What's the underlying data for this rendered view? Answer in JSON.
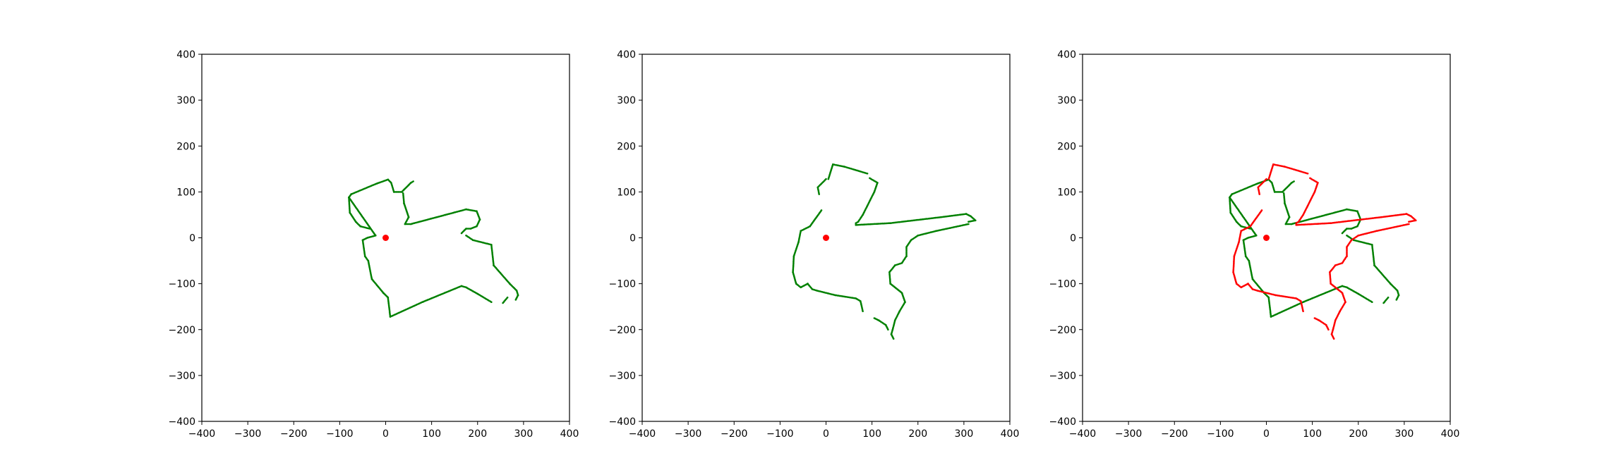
{
  "colors": {
    "scan_a": "#008000",
    "scan_b": "#ff0000",
    "origin": "#ff0000"
  },
  "chart_data": [
    {
      "type": "scatter",
      "xlim": [
        -400,
        400
      ],
      "ylim": [
        -400,
        400
      ],
      "xticks": [
        "−400",
        "−300",
        "−200",
        "−100",
        "0",
        "100",
        "200",
        "300",
        "400"
      ],
      "yticks": [
        "400",
        "300",
        "200",
        "100",
        "0",
        "−100",
        "−200",
        "−300",
        "−400"
      ],
      "grid": false,
      "origin": [
        0,
        0
      ],
      "series": [
        {
          "color": "#008000",
          "segments": [
            [
              [
                -22,
                5
              ],
              [
                -80,
                88
              ],
              [
                -75,
                95
              ],
              [
                -20,
                118
              ],
              [
                5,
                127
              ],
              [
                12,
                120
              ],
              [
                18,
                100
              ],
              [
                35,
                100
              ],
              [
                55,
                120
              ],
              [
                60,
                123
              ]
            ],
            [
              [
                -80,
                88
              ],
              [
                -78,
                55
              ],
              [
                -65,
                35
              ],
              [
                -55,
                25
              ],
              [
                -35,
                20
              ]
            ],
            [
              [
                -22,
                5
              ],
              [
                -40,
                0
              ],
              [
                -50,
                -5
              ],
              [
                -45,
                -40
              ],
              [
                -38,
                -50
              ],
              [
                -30,
                -90
              ],
              [
                -5,
                -120
              ],
              [
                5,
                -130
              ],
              [
                10,
                -172
              ],
              [
                80,
                -140
              ],
              [
                165,
                -105
              ],
              [
                175,
                -108
              ],
              [
                200,
                -122
              ],
              [
                230,
                -140
              ]
            ],
            [
              [
                38,
                97
              ],
              [
                40,
                75
              ],
              [
                50,
                45
              ],
              [
                42,
                30
              ],
              [
                55,
                30
              ]
            ],
            [
              [
                55,
                30
              ],
              [
                130,
                50
              ],
              [
                175,
                62
              ],
              [
                198,
                58
              ],
              [
                205,
                40
              ],
              [
                198,
                25
              ],
              [
                185,
                20
              ],
              [
                175,
                20
              ],
              [
                165,
                10
              ]
            ],
            [
              [
                175,
                5
              ],
              [
                190,
                -5
              ],
              [
                230,
                -15
              ],
              [
                235,
                -60
              ],
              [
                270,
                -100
              ],
              [
                285,
                -115
              ],
              [
                288,
                -125
              ],
              [
                283,
                -135
              ]
            ],
            [
              [
                265,
                -130
              ],
              [
                255,
                -142
              ]
            ]
          ]
        },
        {
          "color": "#008000",
          "segments": [
            [
              [
                5,
                128
              ],
              [
                15,
                160
              ],
              [
                40,
                155
              ],
              [
                90,
                140
              ]
            ],
            [
              [
                95,
                130
              ],
              [
                112,
                120
              ],
              [
                105,
                100
              ],
              [
                80,
                50
              ],
              [
                70,
                35
              ],
              [
                65,
                32
              ],
              [
                65,
                28
              ],
              [
                140,
                32
              ]
            ],
            [
              [
                140,
                32
              ],
              [
                250,
                45
              ],
              [
                305,
                52
              ],
              [
                315,
                47
              ],
              [
                325,
                38
              ],
              [
                310,
                35
              ]
            ],
            [
              [
                310,
                30
              ],
              [
                240,
                15
              ],
              [
                200,
                5
              ],
              [
                185,
                -5
              ],
              [
                175,
                -20
              ],
              [
                175,
                -40
              ],
              [
                165,
                -55
              ],
              [
                150,
                -60
              ],
              [
                138,
                -75
              ],
              [
                140,
                -100
              ],
              [
                165,
                -120
              ],
              [
                172,
                -140
              ],
              [
                160,
                -160
              ],
              [
                150,
                -180
              ],
              [
                145,
                -200
              ],
              [
                142,
                -210
              ],
              [
                147,
                -220
              ]
            ],
            [
              [
                -10,
                60
              ],
              [
                -35,
                25
              ],
              [
                -55,
                15
              ],
              [
                -60,
                -10
              ],
              [
                -70,
                -40
              ],
              [
                -72,
                -75
              ],
              [
                -65,
                -100
              ],
              [
                -55,
                -108
              ],
              [
                -40,
                -100
              ],
              [
                -30,
                -112
              ],
              [
                -20,
                -115
              ],
              [
                20,
                -125
              ],
              [
                65,
                -132
              ],
              [
                75,
                -138
              ],
              [
                80,
                -160
              ]
            ],
            [
              [
                -15,
                95
              ],
              [
                -18,
                110
              ],
              [
                0,
                128
              ]
            ],
            [
              [
                105,
                -175
              ],
              [
                115,
                -180
              ],
              [
                130,
                -190
              ],
              [
                135,
                -200
              ]
            ]
          ]
        },
        {
          "color": "#008000",
          "segments": [
            [
              [
                -22,
                5
              ],
              [
                -80,
                88
              ],
              [
                -75,
                95
              ],
              [
                -20,
                118
              ],
              [
                5,
                127
              ],
              [
                12,
                120
              ],
              [
                18,
                100
              ],
              [
                35,
                100
              ],
              [
                55,
                120
              ],
              [
                60,
                123
              ]
            ],
            [
              [
                -80,
                88
              ],
              [
                -78,
                55
              ],
              [
                -65,
                35
              ],
              [
                -55,
                25
              ],
              [
                -35,
                20
              ]
            ],
            [
              [
                -22,
                5
              ],
              [
                -40,
                0
              ],
              [
                -50,
                -5
              ],
              [
                -45,
                -40
              ],
              [
                -38,
                -50
              ],
              [
                -30,
                -90
              ],
              [
                -5,
                -120
              ],
              [
                5,
                -130
              ],
              [
                10,
                -172
              ],
              [
                80,
                -140
              ],
              [
                165,
                -105
              ],
              [
                175,
                -108
              ],
              [
                200,
                -122
              ],
              [
                230,
                -140
              ]
            ],
            [
              [
                38,
                97
              ],
              [
                40,
                75
              ],
              [
                50,
                45
              ],
              [
                42,
                30
              ],
              [
                55,
                30
              ]
            ],
            [
              [
                55,
                30
              ],
              [
                130,
                50
              ],
              [
                175,
                62
              ],
              [
                198,
                58
              ],
              [
                205,
                40
              ],
              [
                198,
                25
              ],
              [
                185,
                20
              ],
              [
                175,
                20
              ],
              [
                165,
                10
              ]
            ],
            [
              [
                175,
                5
              ],
              [
                190,
                -5
              ],
              [
                230,
                -15
              ],
              [
                235,
                -60
              ],
              [
                270,
                -100
              ],
              [
                285,
                -115
              ],
              [
                288,
                -125
              ],
              [
                283,
                -135
              ]
            ],
            [
              [
                265,
                -130
              ],
              [
                255,
                -142
              ]
            ]
          ]
        },
        {
          "color": "#ff0000",
          "segments": [
            [
              [
                5,
                128
              ],
              [
                15,
                160
              ],
              [
                40,
                155
              ],
              [
                90,
                140
              ]
            ],
            [
              [
                95,
                130
              ],
              [
                112,
                120
              ],
              [
                105,
                100
              ],
              [
                80,
                50
              ],
              [
                70,
                35
              ],
              [
                65,
                32
              ],
              [
                65,
                28
              ],
              [
                140,
                32
              ]
            ],
            [
              [
                140,
                32
              ],
              [
                250,
                45
              ],
              [
                305,
                52
              ],
              [
                315,
                47
              ],
              [
                325,
                38
              ],
              [
                310,
                35
              ]
            ],
            [
              [
                310,
                30
              ],
              [
                240,
                15
              ],
              [
                200,
                5
              ],
              [
                185,
                -5
              ],
              [
                175,
                -20
              ],
              [
                175,
                -40
              ],
              [
                165,
                -55
              ],
              [
                150,
                -60
              ],
              [
                138,
                -75
              ],
              [
                140,
                -100
              ],
              [
                165,
                -120
              ],
              [
                172,
                -140
              ],
              [
                160,
                -160
              ],
              [
                150,
                -180
              ],
              [
                145,
                -200
              ],
              [
                142,
                -210
              ],
              [
                147,
                -220
              ]
            ],
            [
              [
                -10,
                60
              ],
              [
                -35,
                25
              ],
              [
                -55,
                15
              ],
              [
                -60,
                -10
              ],
              [
                -70,
                -40
              ],
              [
                -72,
                -75
              ],
              [
                -65,
                -100
              ],
              [
                -55,
                -108
              ],
              [
                -40,
                -100
              ],
              [
                -30,
                -112
              ],
              [
                -20,
                -115
              ],
              [
                20,
                -125
              ],
              [
                65,
                -132
              ],
              [
                75,
                -138
              ],
              [
                80,
                -160
              ]
            ],
            [
              [
                -15,
                95
              ],
              [
                -18,
                110
              ],
              [
                0,
                128
              ]
            ],
            [
              [
                105,
                -175
              ],
              [
                115,
                -180
              ],
              [
                130,
                -190
              ],
              [
                135,
                -200
              ]
            ]
          ]
        }
      ]
    }
  ]
}
